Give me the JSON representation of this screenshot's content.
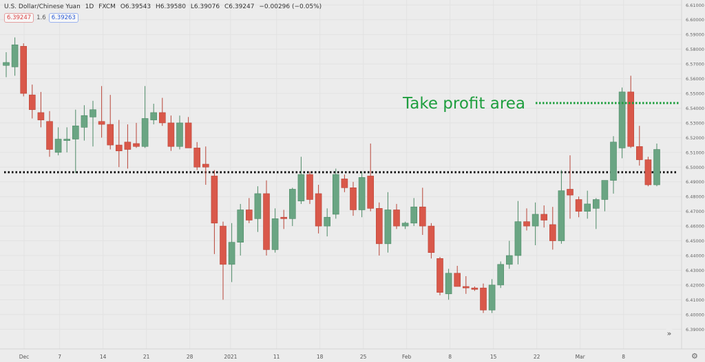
{
  "header": {
    "symbol": "U.S. Dollar/Chinese Yuan",
    "interval": "1D",
    "source": "FXCM",
    "open": "O6.39543",
    "high": "H6.39580",
    "low": "L6.39076",
    "close": "C6.39247",
    "change": "−0.00296 (−0.05%)"
  },
  "badges": {
    "sell": "6.39247",
    "mid": "1.6",
    "buy": "6.39263"
  },
  "annotation": {
    "text": "Take profit area",
    "color": "#1e9e3e"
  },
  "icons": {
    "scroll": "double-chevron-right-icon",
    "settings": "gear-icon"
  },
  "chart_data": {
    "type": "candlestick",
    "x_ticks": [
      {
        "label": "Dec",
        "index": 0
      },
      {
        "label": "7",
        "index": 4.1
      },
      {
        "label": "14",
        "index": 9.1
      },
      {
        "label": "21",
        "index": 14.1
      },
      {
        "label": "28",
        "index": 19.1
      },
      {
        "label": "2021",
        "index": 23.8
      },
      {
        "label": "11",
        "index": 29.1
      },
      {
        "label": "18",
        "index": 34.1
      },
      {
        "label": "25",
        "index": 39.1
      },
      {
        "label": "Feb",
        "index": 44.1
      },
      {
        "label": "8",
        "index": 49.1
      },
      {
        "label": "15",
        "index": 54.1
      },
      {
        "label": "22",
        "index": 59.1
      },
      {
        "label": "Mar",
        "index": 64.1
      },
      {
        "label": "8",
        "index": 69.1
      }
    ],
    "y_ticks": [
      "6.61000",
      "6.60000",
      "6.59000",
      "6.58000",
      "6.57000",
      "6.56000",
      "6.55000",
      "6.54000",
      "6.53000",
      "6.52000",
      "6.51000",
      "6.50000",
      "6.49000",
      "6.48000",
      "6.47000",
      "6.46000",
      "6.45000",
      "6.44000",
      "6.43000",
      "6.42000",
      "6.41000",
      "6.40000",
      "6.39000"
    ],
    "y_range": [
      6.385,
      6.612
    ],
    "support_level": 6.4965,
    "take_profit_level": 6.5435,
    "colors": {
      "up": "#6aa583",
      "down": "#d9584a",
      "up_border": "#4d8a66",
      "down_border": "#b94437"
    },
    "candles": [
      {
        "o": 6.569,
        "h": 6.578,
        "l": 6.561,
        "c": 6.571
      },
      {
        "o": 6.568,
        "h": 6.588,
        "l": 6.562,
        "c": 6.583
      },
      {
        "o": 6.582,
        "h": 6.584,
        "l": 6.548,
        "c": 6.55
      },
      {
        "o": 6.549,
        "h": 6.556,
        "l": 6.533,
        "c": 6.539
      },
      {
        "o": 6.537,
        "h": 6.551,
        "l": 6.527,
        "c": 6.532
      },
      {
        "o": 6.531,
        "h": 6.538,
        "l": 6.507,
        "c": 6.512
      },
      {
        "o": 6.51,
        "h": 6.527,
        "l": 6.508,
        "c": 6.519
      },
      {
        "o": 6.518,
        "h": 6.527,
        "l": 6.51,
        "c": 6.519
      },
      {
        "o": 6.519,
        "h": 6.539,
        "l": 6.496,
        "c": 6.528
      },
      {
        "o": 6.527,
        "h": 6.542,
        "l": 6.518,
        "c": 6.535
      },
      {
        "o": 6.534,
        "h": 6.545,
        "l": 6.514,
        "c": 6.539
      },
      {
        "o": 6.531,
        "h": 6.555,
        "l": 6.52,
        "c": 6.529
      },
      {
        "o": 6.529,
        "h": 6.549,
        "l": 6.512,
        "c": 6.515
      },
      {
        "o": 6.515,
        "h": 6.532,
        "l": 6.5,
        "c": 6.511
      },
      {
        "o": 6.517,
        "h": 6.529,
        "l": 6.499,
        "c": 6.512
      },
      {
        "o": 6.516,
        "h": 6.53,
        "l": 6.513,
        "c": 6.514
      },
      {
        "o": 6.514,
        "h": 6.555,
        "l": 6.513,
        "c": 6.533
      },
      {
        "o": 6.532,
        "h": 6.543,
        "l": 6.529,
        "c": 6.537
      },
      {
        "o": 6.537,
        "h": 6.547,
        "l": 6.528,
        "c": 6.53
      },
      {
        "o": 6.53,
        "h": 6.535,
        "l": 6.511,
        "c": 6.514
      },
      {
        "o": 6.514,
        "h": 6.535,
        "l": 6.512,
        "c": 6.53
      },
      {
        "o": 6.53,
        "h": 6.534,
        "l": 6.514,
        "c": 6.513
      },
      {
        "o": 6.513,
        "h": 6.517,
        "l": 6.498,
        "c": 6.5
      },
      {
        "o": 6.502,
        "h": 6.514,
        "l": 6.488,
        "c": 6.5
      },
      {
        "o": 6.494,
        "h": 6.498,
        "l": 6.441,
        "c": 6.462
      },
      {
        "o": 6.46,
        "h": 6.463,
        "l": 6.41,
        "c": 6.434
      },
      {
        "o": 6.434,
        "h": 6.462,
        "l": 6.422,
        "c": 6.449
      },
      {
        "o": 6.449,
        "h": 6.475,
        "l": 6.44,
        "c": 6.471
      },
      {
        "o": 6.471,
        "h": 6.479,
        "l": 6.462,
        "c": 6.464
      },
      {
        "o": 6.465,
        "h": 6.487,
        "l": 6.456,
        "c": 6.482
      },
      {
        "o": 6.482,
        "h": 6.491,
        "l": 6.44,
        "c": 6.444
      },
      {
        "o": 6.444,
        "h": 6.472,
        "l": 6.442,
        "c": 6.465
      },
      {
        "o": 6.466,
        "h": 6.471,
        "l": 6.458,
        "c": 6.465
      },
      {
        "o": 6.465,
        "h": 6.486,
        "l": 6.46,
        "c": 6.485
      },
      {
        "o": 6.477,
        "h": 6.507,
        "l": 6.475,
        "c": 6.495
      },
      {
        "o": 6.495,
        "h": 6.497,
        "l": 6.475,
        "c": 6.478
      },
      {
        "o": 6.482,
        "h": 6.488,
        "l": 6.455,
        "c": 6.46
      },
      {
        "o": 6.46,
        "h": 6.472,
        "l": 6.453,
        "c": 6.466
      },
      {
        "o": 6.468,
        "h": 6.499,
        "l": 6.465,
        "c": 6.495
      },
      {
        "o": 6.492,
        "h": 6.495,
        "l": 6.483,
        "c": 6.486
      },
      {
        "o": 6.486,
        "h": 6.49,
        "l": 6.467,
        "c": 6.471
      },
      {
        "o": 6.471,
        "h": 6.497,
        "l": 6.466,
        "c": 6.493
      },
      {
        "o": 6.494,
        "h": 6.516,
        "l": 6.47,
        "c": 6.472
      },
      {
        "o": 6.472,
        "h": 6.476,
        "l": 6.44,
        "c": 6.448
      },
      {
        "o": 6.448,
        "h": 6.483,
        "l": 6.442,
        "c": 6.471
      },
      {
        "o": 6.471,
        "h": 6.475,
        "l": 6.458,
        "c": 6.46
      },
      {
        "o": 6.46,
        "h": 6.463,
        "l": 6.458,
        "c": 6.462
      },
      {
        "o": 6.462,
        "h": 6.479,
        "l": 6.46,
        "c": 6.473
      },
      {
        "o": 6.473,
        "h": 6.486,
        "l": 6.454,
        "c": 6.46
      },
      {
        "o": 6.46,
        "h": 6.462,
        "l": 6.438,
        "c": 6.442
      },
      {
        "o": 6.438,
        "h": 6.439,
        "l": 6.413,
        "c": 6.415
      },
      {
        "o": 6.414,
        "h": 6.431,
        "l": 6.41,
        "c": 6.428
      },
      {
        "o": 6.428,
        "h": 6.433,
        "l": 6.419,
        "c": 6.419
      },
      {
        "o": 6.419,
        "h": 6.426,
        "l": 6.414,
        "c": 6.418
      },
      {
        "o": 6.418,
        "h": 6.419,
        "l": 6.416,
        "c": 6.417
      },
      {
        "o": 6.418,
        "h": 6.421,
        "l": 6.401,
        "c": 6.403
      },
      {
        "o": 6.403,
        "h": 6.424,
        "l": 6.401,
        "c": 6.42
      },
      {
        "o": 6.42,
        "h": 6.436,
        "l": 6.418,
        "c": 6.434
      },
      {
        "o": 6.434,
        "h": 6.45,
        "l": 6.431,
        "c": 6.44
      },
      {
        "o": 6.44,
        "h": 6.477,
        "l": 6.434,
        "c": 6.463
      },
      {
        "o": 6.463,
        "h": 6.472,
        "l": 6.457,
        "c": 6.46
      },
      {
        "o": 6.46,
        "h": 6.476,
        "l": 6.447,
        "c": 6.468
      },
      {
        "o": 6.468,
        "h": 6.474,
        "l": 6.459,
        "c": 6.464
      },
      {
        "o": 6.461,
        "h": 6.473,
        "l": 6.444,
        "c": 6.45
      },
      {
        "o": 6.45,
        "h": 6.498,
        "l": 6.448,
        "c": 6.484
      },
      {
        "o": 6.485,
        "h": 6.508,
        "l": 6.465,
        "c": 6.481
      },
      {
        "o": 6.478,
        "h": 6.48,
        "l": 6.466,
        "c": 6.47
      },
      {
        "o": 6.47,
        "h": 6.484,
        "l": 6.465,
        "c": 6.475
      },
      {
        "o": 6.472,
        "h": 6.479,
        "l": 6.458,
        "c": 6.478
      },
      {
        "o": 6.478,
        "h": 6.49,
        "l": 6.47,
        "c": 6.491
      },
      {
        "o": 6.491,
        "h": 6.521,
        "l": 6.482,
        "c": 6.517
      },
      {
        "o": 6.513,
        "h": 6.554,
        "l": 6.506,
        "c": 6.551
      },
      {
        "o": 6.551,
        "h": 6.562,
        "l": 6.513,
        "c": 6.514
      },
      {
        "o": 6.514,
        "h": 6.528,
        "l": 6.501,
        "c": 6.505
      },
      {
        "o": 6.505,
        "h": 6.507,
        "l": 6.487,
        "c": 6.488
      },
      {
        "o": 6.488,
        "h": 6.516,
        "l": 6.487,
        "c": 6.512
      }
    ]
  }
}
